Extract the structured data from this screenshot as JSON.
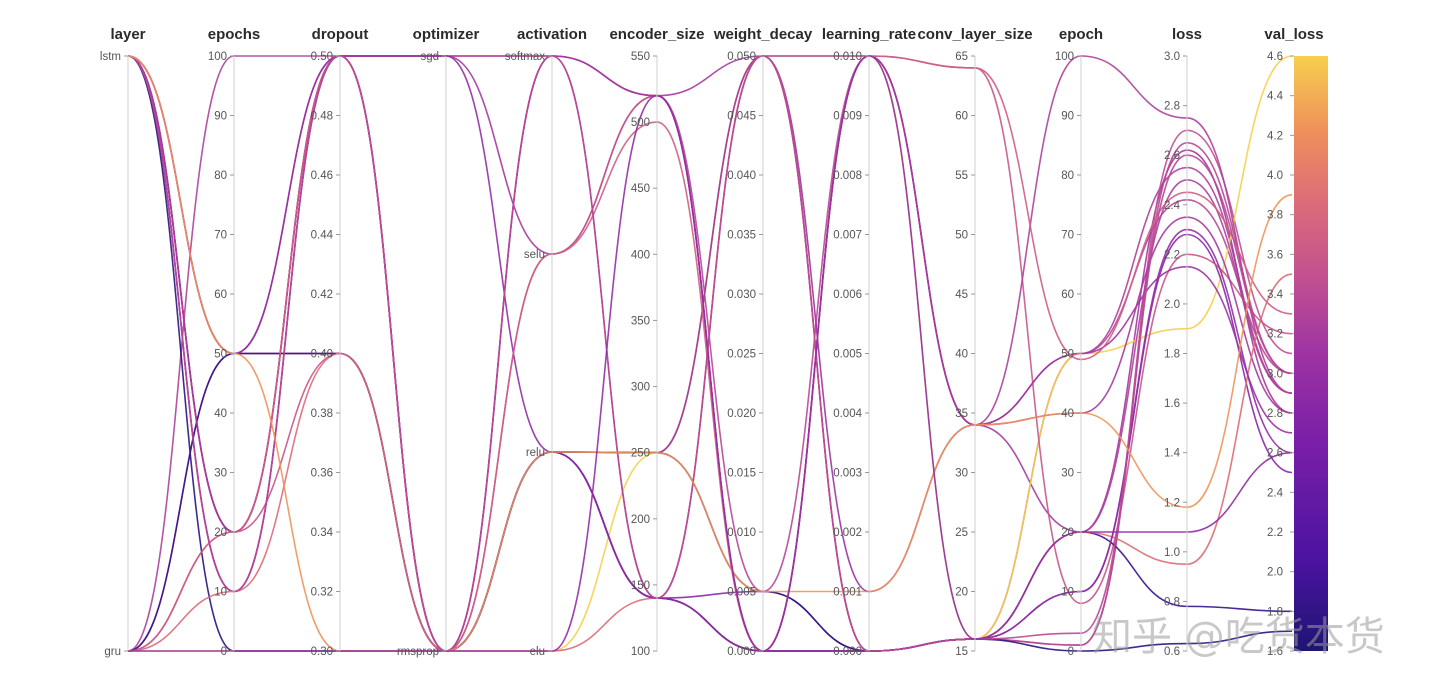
{
  "chart_data": {
    "type": "parallel_coordinates",
    "axes": [
      {
        "name": "layer",
        "kind": "categorical",
        "categories": [
          "lstm",
          "gru"
        ]
      },
      {
        "name": "epochs",
        "kind": "numeric",
        "range": [
          0,
          100
        ],
        "ticks": [
          100,
          90,
          80,
          70,
          60,
          50,
          40,
          30,
          20,
          10,
          0
        ],
        "tick_labels": [
          "100",
          "90",
          "80",
          "70",
          "60",
          "50",
          "40",
          "30",
          "20",
          "10",
          "0"
        ]
      },
      {
        "name": "dropout",
        "kind": "numeric",
        "range": [
          0.3,
          0.5
        ],
        "ticks": [
          0.5,
          0.48,
          0.46,
          0.44,
          0.42,
          0.4,
          0.38,
          0.36,
          0.34,
          0.32,
          0.3
        ],
        "tick_labels": [
          "0.50",
          "0.48",
          "0.46",
          "0.44",
          "0.42",
          "0.40",
          "0.38",
          "0.36",
          "0.34",
          "0.32",
          "0.30"
        ]
      },
      {
        "name": "optimizer",
        "kind": "categorical",
        "categories": [
          "sgd",
          "rmsprop"
        ]
      },
      {
        "name": "activation",
        "kind": "categorical",
        "categories": [
          "softmax",
          "selu",
          "relu",
          "elu"
        ]
      },
      {
        "name": "encoder_size",
        "kind": "numeric",
        "range": [
          100,
          550
        ],
        "ticks": [
          550,
          500,
          450,
          400,
          350,
          300,
          250,
          200,
          150,
          100
        ],
        "tick_labels": [
          "550",
          "500",
          "450",
          "400",
          "350",
          "300",
          "250",
          "200",
          "150",
          "100"
        ]
      },
      {
        "name": "weight_decay",
        "kind": "numeric",
        "range": [
          0,
          0.05
        ],
        "ticks": [
          0.05,
          0.045,
          0.04,
          0.035,
          0.03,
          0.025,
          0.02,
          0.015,
          0.01,
          0.005,
          0
        ],
        "tick_labels": [
          "0.050",
          "0.045",
          "0.040",
          "0.035",
          "0.030",
          "0.025",
          "0.020",
          "0.015",
          "0.010",
          "0.005",
          "0.000"
        ]
      },
      {
        "name": "learning_rate",
        "kind": "numeric",
        "range": [
          0,
          0.01
        ],
        "ticks": [
          0.01,
          0.009,
          0.008,
          0.007,
          0.006,
          0.005,
          0.004,
          0.003,
          0.002,
          0.001,
          0
        ],
        "tick_labels": [
          "0.010",
          "0.009",
          "0.008",
          "0.007",
          "0.006",
          "0.005",
          "0.004",
          "0.003",
          "0.002",
          "0.001",
          "0.000"
        ]
      },
      {
        "name": "conv_layer_size",
        "kind": "numeric",
        "range": [
          15,
          65
        ],
        "ticks": [
          65,
          60,
          55,
          50,
          45,
          40,
          35,
          30,
          25,
          20,
          15
        ],
        "tick_labels": [
          "65",
          "60",
          "55",
          "50",
          "45",
          "40",
          "35",
          "30",
          "25",
          "20",
          "15"
        ]
      },
      {
        "name": "epoch",
        "kind": "numeric",
        "range": [
          0,
          100
        ],
        "ticks": [
          100,
          90,
          80,
          70,
          60,
          50,
          40,
          30,
          20,
          10,
          0
        ],
        "tick_labels": [
          "100",
          "90",
          "80",
          "70",
          "60",
          "50",
          "40",
          "30",
          "20",
          "10",
          "0"
        ]
      },
      {
        "name": "loss",
        "kind": "numeric",
        "range": [
          0.6,
          3.0
        ],
        "ticks": [
          3.0,
          2.8,
          2.6,
          2.4,
          2.2,
          2.0,
          1.8,
          1.6,
          1.4,
          1.2,
          1.0,
          0.8,
          0.6
        ],
        "tick_labels": [
          "3.0",
          "2.8",
          "2.6",
          "2.4",
          "2.2",
          "2.0",
          "1.8",
          "1.6",
          "1.4",
          "1.2",
          "1.0",
          "0.8",
          "0.6"
        ]
      },
      {
        "name": "val_loss",
        "kind": "colorbar",
        "range": [
          1.6,
          4.6
        ],
        "ticks": [
          4.6,
          4.4,
          4.2,
          4.0,
          3.8,
          3.6,
          3.4,
          3.2,
          3.0,
          2.8,
          2.6,
          2.4,
          2.2,
          2.0,
          1.8,
          1.6
        ],
        "tick_labels": [
          "4.6",
          "4.4",
          "4.2",
          "4.0",
          "3.8",
          "3.6",
          "3.4",
          "3.2",
          "3.0",
          "2.8",
          "2.6",
          "2.4",
          "2.2",
          "2.0",
          "1.8",
          "1.6"
        ]
      }
    ],
    "runs": [
      [
        0,
        20,
        0.5,
        "sgd",
        "softmax",
        520,
        0.005,
        0.01,
        34,
        50,
        2.42,
        3.0
      ],
      [
        0,
        50,
        0.4,
        "rmsprop",
        "relu",
        250,
        0.05,
        0.0,
        16,
        50,
        2.55,
        2.9
      ],
      [
        0,
        10,
        0.5,
        "sgd",
        "selu",
        520,
        0.0,
        0.01,
        34,
        20,
        2.62,
        2.8
      ],
      [
        0,
        50,
        0.5,
        "rmsprop",
        "relu",
        140,
        0.0,
        0.0,
        16,
        1,
        2.7,
        3.1
      ],
      [
        1,
        0,
        0.3,
        "rmsprop",
        "elu",
        250,
        0.05,
        0.01,
        16,
        50,
        1.9,
        4.6
      ],
      [
        0,
        20,
        0.5,
        "rmsprop",
        "relu",
        140,
        0.005,
        0.0,
        16,
        10,
        2.28,
        2.5
      ],
      [
        1,
        20,
        0.4,
        "rmsprop",
        "selu",
        520,
        0.0,
        0.01,
        64,
        8,
        2.2,
        3.2
      ],
      [
        0,
        10,
        0.5,
        "rmsprop",
        "relu",
        250,
        0.05,
        0.001,
        34,
        50,
        2.15,
        2.7
      ],
      [
        1,
        50,
        0.4,
        "rmsprop",
        "softmax",
        140,
        0.0,
        0.0,
        16,
        20,
        2.5,
        2.9
      ],
      [
        0,
        20,
        0.5,
        "rmsprop",
        "relu",
        140,
        0.05,
        0.0,
        16,
        1,
        2.65,
        3.0
      ],
      [
        1,
        100,
        0.5,
        "sgd",
        "softmax",
        520,
        0.0,
        0.01,
        34,
        100,
        2.75,
        2.9
      ],
      [
        0,
        0,
        0.3,
        "rmsprop",
        "relu",
        250,
        0.005,
        0.0,
        16,
        0,
        0.63,
        1.7
      ],
      [
        1,
        50,
        0.4,
        "rmsprop",
        "relu",
        140,
        0.0,
        0.0,
        16,
        20,
        0.78,
        1.8
      ],
      [
        0,
        20,
        0.5,
        "rmsprop",
        "softmax",
        520,
        0.05,
        0.01,
        34,
        40,
        2.35,
        2.8
      ],
      [
        1,
        10,
        0.4,
        "rmsprop",
        "elu",
        140,
        0.05,
        0.0,
        16,
        20,
        0.95,
        3.5
      ],
      [
        0,
        50,
        0.5,
        "sgd",
        "relu",
        140,
        0.0,
        0.0,
        16,
        10,
        2.3,
        2.6
      ],
      [
        1,
        20,
        0.5,
        "rmsprop",
        "selu",
        500,
        0.0,
        0.01,
        64,
        49,
        2.45,
        3.3
      ],
      [
        0,
        10,
        0.5,
        "rmsprop",
        "softmax",
        140,
        0.05,
        0.0,
        16,
        3,
        2.6,
        3.0
      ],
      [
        0,
        50,
        0.3,
        "rmsprop",
        "relu",
        250,
        0.005,
        0.001,
        34,
        40,
        1.18,
        3.9
      ],
      [
        1,
        0,
        0.3,
        "rmsprop",
        "elu",
        520,
        0.0,
        0.01,
        16,
        20,
        1.08,
        2.6
      ]
    ],
    "colorscale": [
      "#1e1473",
      "#4b13a0",
      "#7a1fa8",
      "#9e34a3",
      "#c04f91",
      "#db6b79",
      "#ee8e5c",
      "#f6b94a",
      "#f6cf4e"
    ],
    "watermark": "知乎 @吃货本货"
  }
}
